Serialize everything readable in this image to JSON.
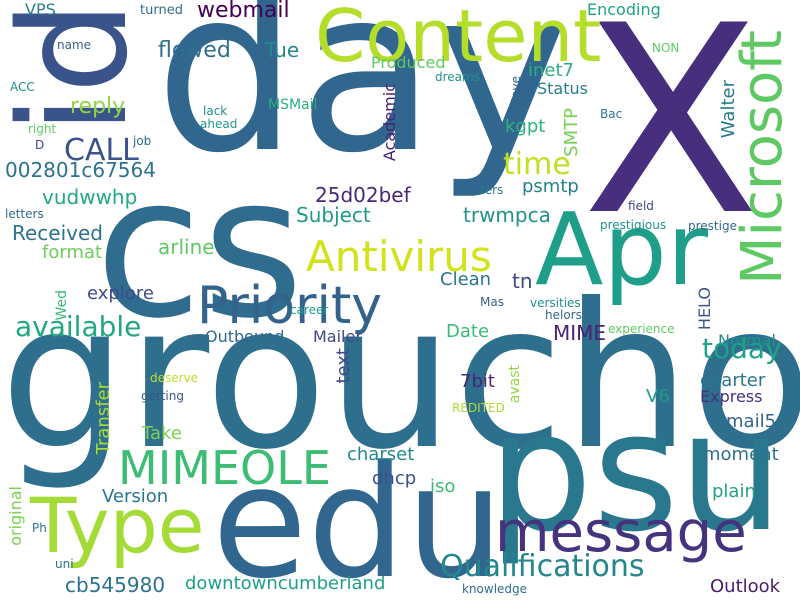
{
  "words": [
    {
      "text": "X",
      "color": "#472f7d"
    },
    {
      "text": "day",
      "color": "#31668e"
    },
    {
      "text": "cs",
      "color": "#2f6c8e"
    },
    {
      "text": "groucho",
      "color": "#2e6f8e"
    },
    {
      "text": "psu",
      "color": "#2a788e"
    },
    {
      "text": "edu",
      "color": "#31678e"
    },
    {
      "text": "id",
      "color": "#3a538b"
    },
    {
      "text": "Content",
      "color": "#b5de2b"
    },
    {
      "text": "Apr",
      "color": "#1f9e89"
    },
    {
      "text": "Microsoft",
      "color": "#5ec962"
    },
    {
      "text": "message",
      "color": "#46337e"
    },
    {
      "text": "Type",
      "color": "#a5db36"
    },
    {
      "text": "Priority",
      "color": "#33628d"
    },
    {
      "text": "MIMEOLE",
      "color": "#3dbc74"
    },
    {
      "text": "Antivirus",
      "color": "#d2e21b"
    },
    {
      "text": "Qualifications",
      "color": "#24868e"
    },
    {
      "text": "available",
      "color": "#22a785"
    },
    {
      "text": "CALL",
      "color": "#3b528b"
    },
    {
      "text": "time",
      "color": "#c0df25"
    },
    {
      "text": "today",
      "color": "#1fa287"
    },
    {
      "text": "webmail",
      "color": "#440154"
    },
    {
      "text": "reply",
      "color": "#8ed645"
    },
    {
      "text": "flowed",
      "color": "#2e6e8e"
    },
    {
      "text": "Tue",
      "color": "#23888e"
    },
    {
      "text": "002801c67564",
      "color": "#2c738e"
    },
    {
      "text": "vudwwhp",
      "color": "#22a884"
    },
    {
      "text": "Received",
      "color": "#2c728e"
    },
    {
      "text": "Subject",
      "color": "#1f998a"
    },
    {
      "text": "25d02bef",
      "color": "#482878"
    },
    {
      "text": "trwmpca",
      "color": "#21918c"
    },
    {
      "text": "psmtp",
      "color": "#26828e"
    },
    {
      "text": "arline",
      "color": "#5ec962"
    },
    {
      "text": "format",
      "color": "#6ccd5a"
    },
    {
      "text": "explore",
      "color": "#3e4a89"
    },
    {
      "text": "Produced",
      "color": "#5ec962"
    },
    {
      "text": "inet7",
      "color": "#29af7f"
    },
    {
      "text": "Status",
      "color": "#287d8e"
    },
    {
      "text": "kgpt",
      "color": "#2db27d"
    },
    {
      "text": "SMTP",
      "color": "#75d054"
    },
    {
      "text": "Walter",
      "color": "#2a788e"
    },
    {
      "text": "Encoding",
      "color": "#20a386"
    },
    {
      "text": "Outbound",
      "color": "#31688e"
    },
    {
      "text": "Mailer",
      "color": "#404688"
    },
    {
      "text": "Date",
      "color": "#3bbb75"
    },
    {
      "text": "MIME",
      "color": "#482173"
    },
    {
      "text": "text",
      "color": "#3e4989"
    },
    {
      "text": "charter",
      "color": "#2b748e"
    },
    {
      "text": "Normal",
      "color": "#21918c"
    },
    {
      "text": "HELO",
      "color": "#38588c"
    },
    {
      "text": "Clean",
      "color": "#2a778e"
    },
    {
      "text": "tn",
      "color": "#3f4889"
    },
    {
      "text": "Academic",
      "color": "#482374"
    },
    {
      "text": "7bit",
      "color": "#482677"
    },
    {
      "text": "V6",
      "color": "#1e9b8a"
    },
    {
      "text": "Express",
      "color": "#46307e"
    },
    {
      "text": "mail5",
      "color": "#32648e"
    },
    {
      "text": "moment",
      "color": "#2d708e"
    },
    {
      "text": "plain",
      "color": "#20a386"
    },
    {
      "text": "Take",
      "color": "#7ad151"
    },
    {
      "text": "Transfer",
      "color": "#a8db34"
    },
    {
      "text": "charset",
      "color": "#23898e"
    },
    {
      "text": "dhcp",
      "color": "#3c4f8a"
    },
    {
      "text": "iso",
      "color": "#3fbc73"
    },
    {
      "text": "Version",
      "color": "#2b758e"
    },
    {
      "text": "cb545980",
      "color": "#2c718e"
    },
    {
      "text": "downtowncumberland",
      "color": "#1fa188"
    },
    {
      "text": "Outlook",
      "color": "#481b6d"
    },
    {
      "text": "avast",
      "color": "#90d743"
    },
    {
      "text": "original",
      "color": "#7ad151"
    },
    {
      "text": "Wed",
      "color": "#38b977"
    },
    {
      "text": "VPS",
      "color": "#287c8e"
    },
    {
      "text": "turned",
      "color": "#2f6c8e"
    },
    {
      "text": "name",
      "color": "#34618d"
    },
    {
      "text": "ACC",
      "color": "#228c8d"
    },
    {
      "text": "right",
      "color": "#5ec962"
    },
    {
      "text": "D",
      "color": "#3f4788"
    },
    {
      "text": "job",
      "color": "#2e6e8e"
    },
    {
      "text": "letters",
      "color": "#31688e"
    },
    {
      "text": "dreams",
      "color": "#21918c"
    },
    {
      "text": "Move",
      "color": "#31678e"
    },
    {
      "text": "lack",
      "color": "#228d8d"
    },
    {
      "text": "ahead",
      "color": "#1f9a8a"
    },
    {
      "text": "MSMail",
      "color": "#29af7f"
    },
    {
      "text": "Bac",
      "color": "#2a788e"
    },
    {
      "text": "NON",
      "color": "#5ec962"
    },
    {
      "text": "ters",
      "color": "#2a778e"
    },
    {
      "text": "field",
      "color": "#3e4989"
    },
    {
      "text": "prestigious",
      "color": "#21918c"
    },
    {
      "text": "prestige",
      "color": "#2f6b8e"
    },
    {
      "text": "career",
      "color": "#1f9e89"
    },
    {
      "text": "Mas",
      "color": "#33638d"
    },
    {
      "text": "versities",
      "color": "#228d8d"
    },
    {
      "text": "helors",
      "color": "#31678e"
    },
    {
      "text": "experience",
      "color": "#5ec962"
    },
    {
      "text": "deserve",
      "color": "#b8de29"
    },
    {
      "text": "getting",
      "color": "#39568c"
    },
    {
      "text": "REDITED",
      "color": "#addc30"
    },
    {
      "text": "Ph",
      "color": "#2a788e"
    },
    {
      "text": "uni",
      "color": "#2e6e8e"
    },
    {
      "text": "knowledge",
      "color": "#2e6e8e"
    }
  ]
}
